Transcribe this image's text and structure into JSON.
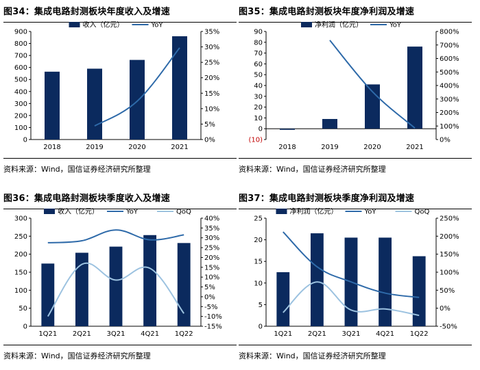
{
  "source": "资料来源：Wind，国信证券经济研究所整理",
  "colors": {
    "bar": "#0b2a5e",
    "yoy": "#2e6aa9",
    "qoq": "#9cc2e0",
    "negative": "#c00000",
    "axis": "#000000"
  },
  "chart_data": [
    {
      "type": "bar",
      "title": "图34：集成电路封测板块年度收入及增速",
      "categories": [
        "2018",
        "2019",
        "2020",
        "2021"
      ],
      "series": [
        {
          "name": "收入（亿元）",
          "type": "bar",
          "axis": "left",
          "values": [
            565,
            590,
            663,
            860
          ]
        },
        {
          "name": "YoY",
          "type": "line",
          "axis": "right",
          "values": [
            null,
            4.4,
            12.4,
            29.7
          ]
        }
      ],
      "ylim_left": [
        0,
        900
      ],
      "yticks_left": [
        "0",
        "100",
        "200",
        "300",
        "400",
        "500",
        "600",
        "700",
        "800",
        "900"
      ],
      "ylim_right": [
        0,
        35
      ],
      "yticks_right": [
        "0%",
        "5%",
        "10%",
        "15%",
        "20%",
        "25%",
        "30%",
        "35%"
      ],
      "legend": "top"
    },
    {
      "type": "bar",
      "title": "图35：集成电路封测板块年度净利润及增速",
      "categories": [
        "2018",
        "2019",
        "2020",
        "2021"
      ],
      "series": [
        {
          "name": "净利润（亿元）",
          "type": "bar",
          "axis": "left",
          "values": [
            -1,
            9,
            41,
            76
          ]
        },
        {
          "name": "YoY",
          "type": "line",
          "axis": "right",
          "values": [
            null,
            735,
            355,
            85
          ]
        }
      ],
      "ylim_left": [
        -10,
        90
      ],
      "yticks_left": [
        "(10)",
        "0",
        "10",
        "20",
        "30",
        "40",
        "50",
        "60",
        "70",
        "80",
        "90"
      ],
      "ylim_right": [
        0,
        800
      ],
      "yticks_right": [
        "0%",
        "100%",
        "200%",
        "300%",
        "400%",
        "500%",
        "600%",
        "700%",
        "800%"
      ],
      "legend": "top"
    },
    {
      "type": "bar",
      "title": "图36：集成电路封测板块季度收入及增速",
      "categories": [
        "1Q21",
        "2Q21",
        "3Q21",
        "4Q21",
        "1Q22"
      ],
      "series": [
        {
          "name": "收入（亿元）",
          "type": "bar",
          "axis": "left",
          "values": [
            174,
            204,
            221,
            253,
            231
          ]
        },
        {
          "name": "YoY",
          "type": "line",
          "axis": "right",
          "values": [
            27.5,
            28.5,
            34,
            29,
            31.5
          ]
        },
        {
          "name": "QoQ",
          "type": "line",
          "axis": "right",
          "values": [
            -10,
            16.5,
            8.5,
            14.5,
            -8.5
          ]
        }
      ],
      "ylim_left": [
        0,
        300
      ],
      "yticks_left": [
        "0",
        "50",
        "100",
        "150",
        "200",
        "250",
        "300"
      ],
      "ylim_right": [
        -15,
        40
      ],
      "yticks_right": [
        "-15%",
        "-10%",
        "-5%",
        "0%",
        "5%",
        "10%",
        "15%",
        "20%",
        "25%",
        "30%",
        "35%",
        "40%"
      ],
      "legend": "top"
    },
    {
      "type": "bar",
      "title": "图37：集成电路封测板块季度净利润及增速",
      "categories": [
        "1Q21",
        "2Q21",
        "3Q21",
        "4Q21",
        "1Q22"
      ],
      "series": [
        {
          "name": "净利润（亿元）",
          "type": "bar",
          "axis": "left",
          "values": [
            12.5,
            21.5,
            20.5,
            20.5,
            16.2
          ]
        },
        {
          "name": "YoY",
          "type": "line",
          "axis": "right",
          "values": [
            212,
            115,
            73,
            42,
            30
          ]
        },
        {
          "name": "QoQ",
          "type": "line",
          "axis": "right",
          "values": [
            -12,
            73,
            -5,
            -2,
            -20
          ]
        }
      ],
      "ylim_left": [
        0,
        25
      ],
      "yticks_left": [
        "0",
        "5",
        "10",
        "15",
        "20",
        "25"
      ],
      "ylim_right": [
        -50,
        250
      ],
      "yticks_right": [
        "-50%",
        "0%",
        "50%",
        "100%",
        "150%",
        "200%",
        "250%"
      ],
      "legend": "top"
    }
  ]
}
